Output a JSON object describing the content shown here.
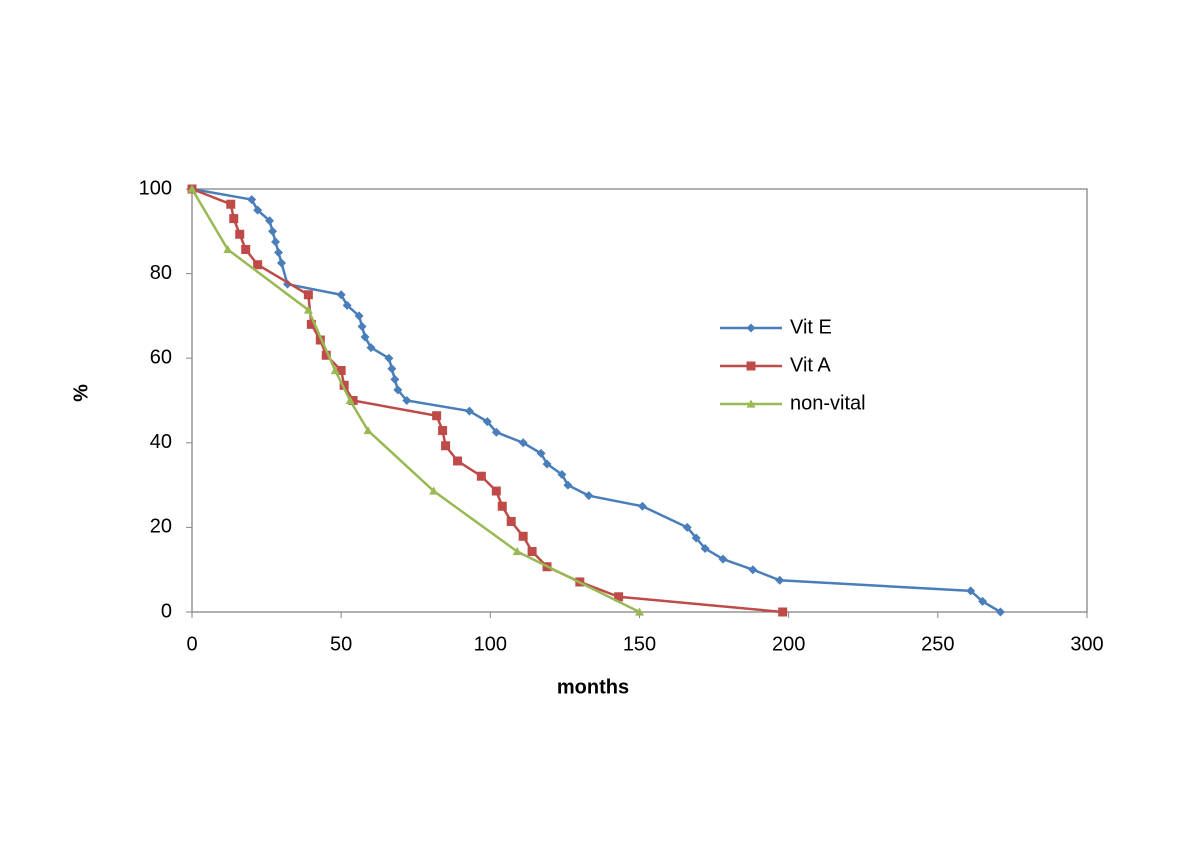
{
  "chart_data": {
    "type": "line",
    "x_label": "months",
    "y_label": "%",
    "xlim": [
      0,
      300
    ],
    "xticks": [
      0,
      50,
      100,
      150,
      200,
      250,
      300
    ],
    "ylim": [
      0,
      100
    ],
    "yticks": [
      0,
      20,
      40,
      60,
      80,
      100
    ],
    "grid": false,
    "legend": "right",
    "series": [
      {
        "name": "Vit E",
        "color": "#4a7ebb",
        "marker": "diamond",
        "x": [
          0,
          20,
          22,
          26,
          27,
          28,
          29,
          30,
          32,
          50,
          52,
          56,
          57,
          58,
          60,
          66,
          67,
          68,
          69,
          72,
          93,
          99,
          102,
          111,
          117,
          119,
          124,
          126,
          133,
          151,
          166,
          169,
          172,
          178,
          188,
          197,
          261,
          265,
          271
        ],
        "values": [
          100,
          97.5,
          95,
          92.5,
          90,
          87.5,
          85,
          82.5,
          77.5,
          75,
          72.5,
          70,
          67.5,
          65,
          62.5,
          60,
          57.5,
          55,
          52.5,
          50,
          47.5,
          45,
          42.5,
          40,
          37.5,
          35,
          32.5,
          30,
          27.5,
          25,
          20,
          17.5,
          15,
          12.5,
          10,
          7.5,
          5,
          2.5,
          0
        ]
      },
      {
        "name": "Vit A",
        "color": "#be4b48",
        "marker": "square",
        "x": [
          0,
          13,
          14,
          16,
          18,
          22,
          39,
          40,
          43,
          45,
          50,
          51,
          54,
          82,
          84,
          85,
          89,
          97,
          102,
          104,
          107,
          111,
          114,
          119,
          130,
          143,
          198
        ],
        "values": [
          100,
          96.4,
          93,
          89.3,
          85.7,
          82.1,
          75,
          68,
          64.3,
          60.7,
          57.1,
          53.6,
          50,
          46.4,
          42.9,
          39.3,
          35.7,
          32.1,
          28.6,
          25,
          21.4,
          17.9,
          14.3,
          10.7,
          7.1,
          3.6,
          0
        ]
      },
      {
        "name": "non-vital",
        "color": "#98b954",
        "marker": "triangle",
        "x": [
          0,
          12,
          39,
          48,
          53,
          59,
          81,
          109,
          150
        ],
        "values": [
          100,
          85.7,
          71.4,
          57.1,
          50,
          42.9,
          28.6,
          14.3,
          0
        ]
      }
    ]
  }
}
